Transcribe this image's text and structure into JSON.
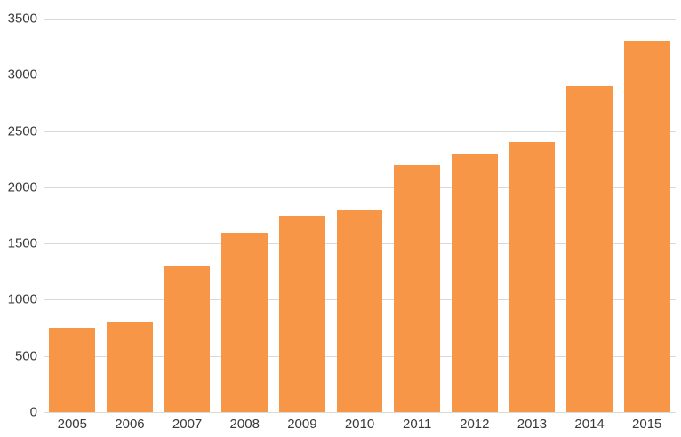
{
  "chart_data": {
    "type": "bar",
    "title": "",
    "xlabel": "",
    "ylabel": "",
    "categories": [
      "2005",
      "2006",
      "2007",
      "2008",
      "2009",
      "2010",
      "2011",
      "2012",
      "2013",
      "2014",
      "2015"
    ],
    "values": [
      750,
      800,
      1300,
      1600,
      1750,
      1800,
      2200,
      2300,
      2400,
      2900,
      3300
    ],
    "ylim": [
      0,
      3500
    ],
    "ytick_step": 500,
    "ytick_labels": [
      "0",
      "500",
      "1000",
      "1500",
      "2000",
      "2500",
      "3000",
      "3500"
    ],
    "grid": true,
    "legend": false,
    "colors": {
      "bar": "#F79646",
      "gridline": "#D9D9D9",
      "axis_label": "#3A3A3A",
      "background": "#FFFFFF"
    }
  }
}
